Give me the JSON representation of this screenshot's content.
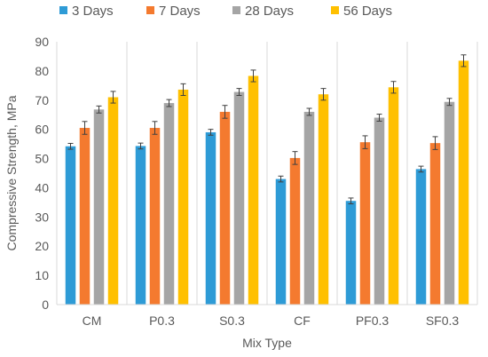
{
  "chart_data": {
    "type": "bar",
    "title": "",
    "xlabel": "Mix Type",
    "ylabel": "Compressive Strength, MPa",
    "ylim": [
      0,
      90
    ],
    "yticks": [
      0,
      10,
      20,
      30,
      40,
      50,
      60,
      70,
      80,
      90
    ],
    "grid": "vertical category separators",
    "legend_position": "top",
    "categories": [
      "CM",
      "P0.3",
      "S0.3",
      "CF",
      "PF0.3",
      "SF0.3"
    ],
    "series": [
      {
        "name": "3 Days",
        "color": "#2E9BD6",
        "values": [
          54.2,
          54.3,
          59.0,
          43.0,
          35.5,
          46.4
        ],
        "errors": [
          1.0,
          1.0,
          1.0,
          1.0,
          1.0,
          1.0
        ]
      },
      {
        "name": "7 Days",
        "color": "#F47A2F",
        "values": [
          60.5,
          60.5,
          66.0,
          50.2,
          55.6,
          55.3
        ],
        "errors": [
          2.2,
          2.2,
          2.2,
          2.2,
          2.2,
          2.2
        ]
      },
      {
        "name": "28 Days",
        "color": "#A5A5A5",
        "values": [
          66.8,
          69.0,
          72.8,
          66.0,
          64.0,
          69.4
        ],
        "errors": [
          1.2,
          1.2,
          1.2,
          1.2,
          1.2,
          1.2
        ]
      },
      {
        "name": "56 Days",
        "color": "#FFC000",
        "values": [
          71.0,
          73.6,
          78.3,
          72.0,
          74.4,
          83.5
        ],
        "errors": [
          2.0,
          2.0,
          2.0,
          2.0,
          2.0,
          2.0
        ]
      }
    ]
  }
}
